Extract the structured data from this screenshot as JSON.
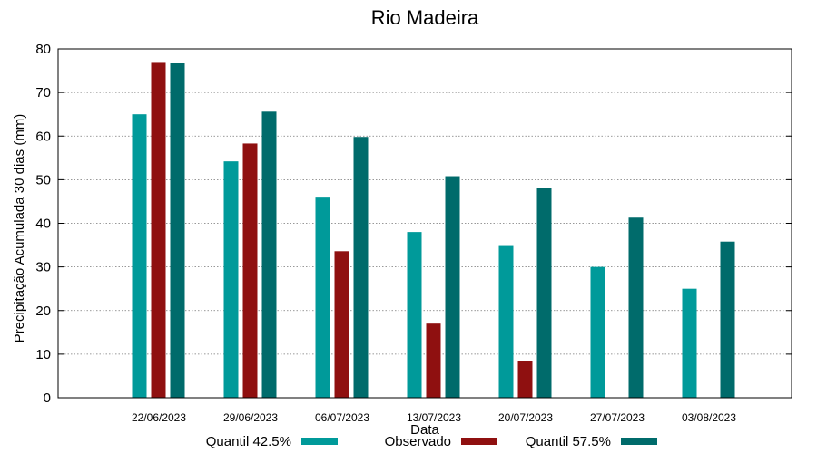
{
  "chart_data": {
    "type": "bar",
    "title": "Rio Madeira",
    "xlabel": "Data",
    "ylabel": "Precipitação Acumulada 30 dias (mm)",
    "ylim": [
      0,
      80
    ],
    "yticks": [
      0,
      10,
      20,
      30,
      40,
      50,
      60,
      70,
      80
    ],
    "grid": true,
    "legend_position": "bottom",
    "categories": [
      "22/06/2023",
      "29/06/2023",
      "06/07/2023",
      "13/07/2023",
      "20/07/2023",
      "27/07/2023",
      "03/08/2023"
    ],
    "series": [
      {
        "name": "Quantil 42.5%",
        "color": "#009a9a",
        "values": [
          65,
          54.2,
          46.1,
          38,
          35,
          30,
          25
        ]
      },
      {
        "name": "Observado",
        "color": "#8f1010",
        "values": [
          77,
          58.3,
          33.6,
          17,
          8.5,
          null,
          null
        ]
      },
      {
        "name": "Quantil 57.5%",
        "color": "#006b6b",
        "values": [
          76.8,
          65.6,
          59.8,
          50.8,
          48.2,
          41.3,
          35.8
        ]
      }
    ]
  }
}
